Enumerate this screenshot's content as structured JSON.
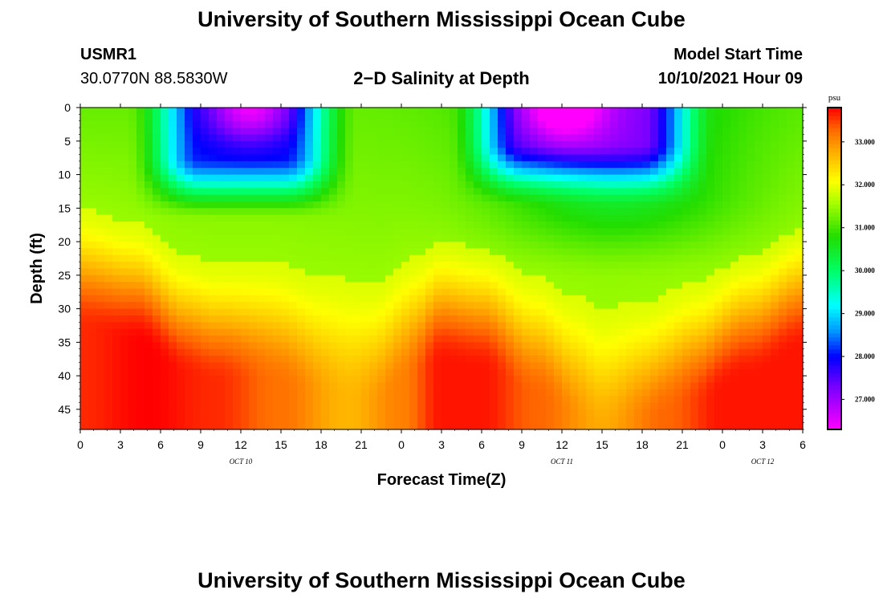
{
  "page": {
    "title": "University of Southern Mississippi Ocean Cube",
    "footer_title": "University of Southern Mississippi Ocean Cube",
    "station": "USMR1",
    "coords": "30.0770N  88.5830W",
    "subtitle": "2−D Salinity at Depth",
    "model_label": "Model Start Time",
    "model_time": "10/10/2021 Hour 09"
  },
  "chart_data": {
    "type": "heatmap",
    "title": "2-D Salinity at Depth",
    "xlabel": "Forecast Time(Z)",
    "ylabel": "Depth (ft)",
    "units": "psu",
    "x_hours": [
      0,
      3,
      6,
      9,
      12,
      15,
      18,
      21,
      24,
      27,
      30,
      33,
      36,
      39,
      42,
      45,
      48,
      51,
      54
    ],
    "x_tick_labels": [
      "0",
      "3",
      "6",
      "9",
      "12",
      "15",
      "18",
      "21",
      "0",
      "3",
      "6",
      "9",
      "12",
      "15",
      "18",
      "21",
      "0",
      "3",
      "6"
    ],
    "day_labels": [
      {
        "label": "OCT 10",
        "hour": 12
      },
      {
        "label": "OCT 11",
        "hour": 36
      },
      {
        "label": "OCT 12",
        "hour": 51
      }
    ],
    "xlim": [
      0,
      54
    ],
    "y_ticks": [
      0,
      5,
      10,
      15,
      20,
      25,
      30,
      35,
      40,
      45
    ],
    "ylim": [
      0,
      48
    ],
    "color_range": [
      26.3,
      33.8
    ],
    "colorbar_ticks": [
      "27.000",
      "28.000",
      "29.000",
      "30.000",
      "31.000",
      "32.000",
      "33.000"
    ],
    "colorbar_values": [
      27,
      28,
      29,
      30,
      31,
      32,
      33
    ],
    "color_stops": [
      {
        "v": 26.3,
        "c": "#ff00ff"
      },
      {
        "v": 27.3,
        "c": "#7700ff"
      },
      {
        "v": 28.0,
        "c": "#0000ff"
      },
      {
        "v": 28.6,
        "c": "#0099ff"
      },
      {
        "v": 29.2,
        "c": "#00ffff"
      },
      {
        "v": 30.0,
        "c": "#00ff66"
      },
      {
        "v": 30.8,
        "c": "#22dd00"
      },
      {
        "v": 31.6,
        "c": "#aaff00"
      },
      {
        "v": 32.1,
        "c": "#ffff00"
      },
      {
        "v": 32.8,
        "c": "#ffaa00"
      },
      {
        "v": 33.3,
        "c": "#ff6600"
      },
      {
        "v": 33.8,
        "c": "#ff0000"
      }
    ],
    "background_salinity": 31.5,
    "halocline_depth_ft": [
      [
        0,
        15
      ],
      [
        4,
        17
      ],
      [
        8,
        22
      ],
      [
        10,
        23
      ],
      [
        14,
        23
      ],
      [
        18,
        25
      ],
      [
        22,
        26
      ],
      [
        25,
        22
      ],
      [
        27,
        20
      ],
      [
        30,
        21
      ],
      [
        34,
        25
      ],
      [
        37,
        28
      ],
      [
        39,
        30
      ],
      [
        42,
        29
      ],
      [
        46,
        26
      ],
      [
        50,
        22
      ],
      [
        54,
        18
      ]
    ],
    "bottom_max_salinity": [
      [
        0,
        33.6
      ],
      [
        5,
        33.8
      ],
      [
        10,
        33.6
      ],
      [
        15,
        33.2
      ],
      [
        20,
        32.7
      ],
      [
        24,
        33.1
      ],
      [
        27,
        33.7
      ],
      [
        30,
        33.7
      ],
      [
        34,
        33.3
      ],
      [
        39,
        32.8
      ],
      [
        44,
        33.3
      ],
      [
        48,
        33.7
      ],
      [
        54,
        33.7
      ]
    ],
    "fresh_lenses": [
      {
        "t_start": 7.5,
        "t_end": 16.8,
        "bottom_ft": 10,
        "core_hour": 12.7,
        "core_salinity": 26.4
      },
      {
        "t_start": 31.5,
        "t_end": 43.5,
        "bottom_ft": 8,
        "core_hour": 36,
        "core_salinity": 26.5
      }
    ],
    "mid_salinity": 30.6
  }
}
